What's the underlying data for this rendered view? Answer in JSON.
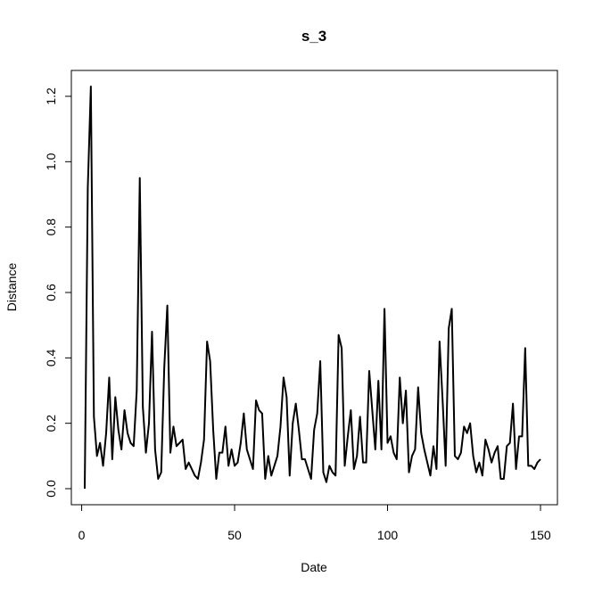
{
  "chart_data": {
    "type": "line",
    "title": "s_3",
    "xlabel": "Date",
    "ylabel": "Distance",
    "xlim": [
      1,
      150
    ],
    "ylim": [
      0,
      1.23
    ],
    "x_ticks": [
      0,
      50,
      100,
      150
    ],
    "x_tick_labels": [
      "0",
      "50",
      "100",
      "150"
    ],
    "y_ticks": [
      0.0,
      0.2,
      0.4,
      0.6,
      0.8,
      1.0,
      1.2
    ],
    "y_tick_labels": [
      "0.0",
      "0.2",
      "0.4",
      "0.6",
      "0.8",
      "1.0",
      "1.2"
    ],
    "grid": false,
    "line_color": "#000000",
    "series": [
      {
        "values": [
          0.0,
          0.92,
          1.23,
          0.22,
          0.1,
          0.14,
          0.07,
          0.17,
          0.34,
          0.09,
          0.28,
          0.18,
          0.12,
          0.24,
          0.17,
          0.14,
          0.13,
          0.3,
          0.95,
          0.25,
          0.11,
          0.2,
          0.48,
          0.12,
          0.03,
          0.05,
          0.37,
          0.56,
          0.11,
          0.19,
          0.13,
          0.14,
          0.15,
          0.06,
          0.08,
          0.06,
          0.04,
          0.03,
          0.08,
          0.15,
          0.45,
          0.39,
          0.18,
          0.03,
          0.11,
          0.11,
          0.19,
          0.07,
          0.12,
          0.07,
          0.08,
          0.14,
          0.23,
          0.12,
          0.09,
          0.06,
          0.27,
          0.24,
          0.23,
          0.03,
          0.1,
          0.04,
          0.07,
          0.1,
          0.19,
          0.34,
          0.28,
          0.04,
          0.2,
          0.26,
          0.18,
          0.09,
          0.09,
          0.06,
          0.03,
          0.18,
          0.23,
          0.39,
          0.05,
          0.02,
          0.07,
          0.05,
          0.04,
          0.47,
          0.43,
          0.07,
          0.16,
          0.24,
          0.06,
          0.1,
          0.22,
          0.08,
          0.08,
          0.36,
          0.24,
          0.12,
          0.33,
          0.12,
          0.55,
          0.14,
          0.16,
          0.11,
          0.09,
          0.34,
          0.2,
          0.3,
          0.05,
          0.1,
          0.12,
          0.31,
          0.17,
          0.12,
          0.08,
          0.04,
          0.13,
          0.06,
          0.45,
          0.27,
          0.07,
          0.49,
          0.55,
          0.1,
          0.09,
          0.11,
          0.19,
          0.17,
          0.2,
          0.1,
          0.05,
          0.08,
          0.04,
          0.15,
          0.12,
          0.08,
          0.11,
          0.13,
          0.03,
          0.03,
          0.13,
          0.14,
          0.26,
          0.06,
          0.16,
          0.16,
          0.43,
          0.07,
          0.07,
          0.06,
          0.08,
          0.09
        ]
      }
    ]
  }
}
